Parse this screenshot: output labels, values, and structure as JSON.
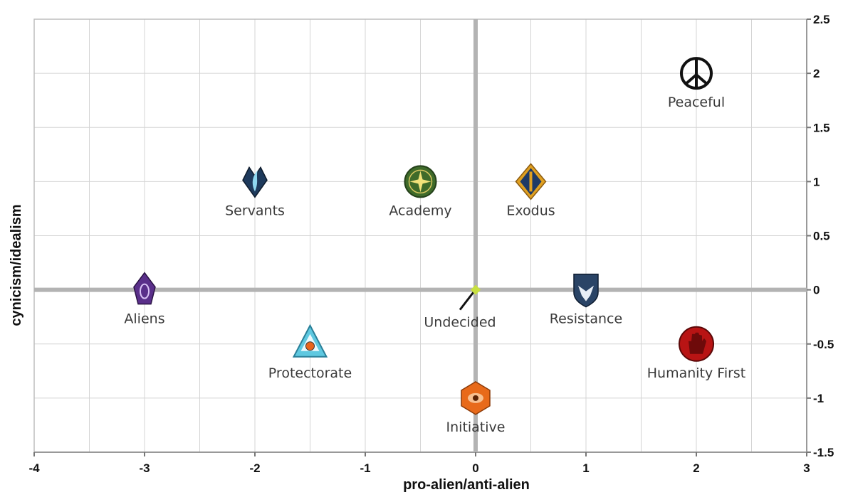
{
  "chart_data": {
    "type": "scatter",
    "title": "",
    "xlabel": "pro-alien/anti-alien",
    "ylabel": "cynicism/idealism",
    "xlim": [
      -4,
      3
    ],
    "ylim": [
      -1.5,
      2.5
    ],
    "x_ticks": [
      "-4",
      "-3",
      "-2",
      "-1",
      "0",
      "1",
      "2",
      "3"
    ],
    "y_ticks": [
      "-1.5",
      "-1",
      "-0.5",
      "0",
      "0.5",
      "1",
      "1.5",
      "2",
      "2.5"
    ],
    "grid": true,
    "legend": "none",
    "points": [
      {
        "label": "Peaceful",
        "x": 2,
        "y": 2,
        "icon": "peace-symbol-icon",
        "color": "#111111"
      },
      {
        "label": "Servants",
        "x": -2,
        "y": 1,
        "icon": "servants-emblem-icon",
        "color": "#1e3a5c"
      },
      {
        "label": "Academy",
        "x": -0.5,
        "y": 1,
        "icon": "academy-emblem-icon",
        "color": "#3f6b2a"
      },
      {
        "label": "Exodus",
        "x": 0.5,
        "y": 1,
        "icon": "exodus-emblem-icon",
        "color": "#e0a020"
      },
      {
        "label": "Aliens",
        "x": -3,
        "y": 0,
        "icon": "aliens-emblem-icon",
        "color": "#5a2f8a"
      },
      {
        "label": "Undecided",
        "x": 0,
        "y": 0,
        "icon": "undecided-marker-icon",
        "color": "#c8e040"
      },
      {
        "label": "Resistance",
        "x": 1,
        "y": 0,
        "icon": "resistance-emblem-icon",
        "color": "#2a4466"
      },
      {
        "label": "Protectorate",
        "x": -1.5,
        "y": -0.5,
        "icon": "protectorate-emblem-icon",
        "color": "#5ec8e0"
      },
      {
        "label": "Humanity First",
        "x": 2,
        "y": -0.5,
        "icon": "humanity-first-emblem-icon",
        "color": "#b81414"
      },
      {
        "label": "Initiative",
        "x": 0,
        "y": -1,
        "icon": "initiative-emblem-icon",
        "color": "#e86a1a"
      }
    ]
  }
}
